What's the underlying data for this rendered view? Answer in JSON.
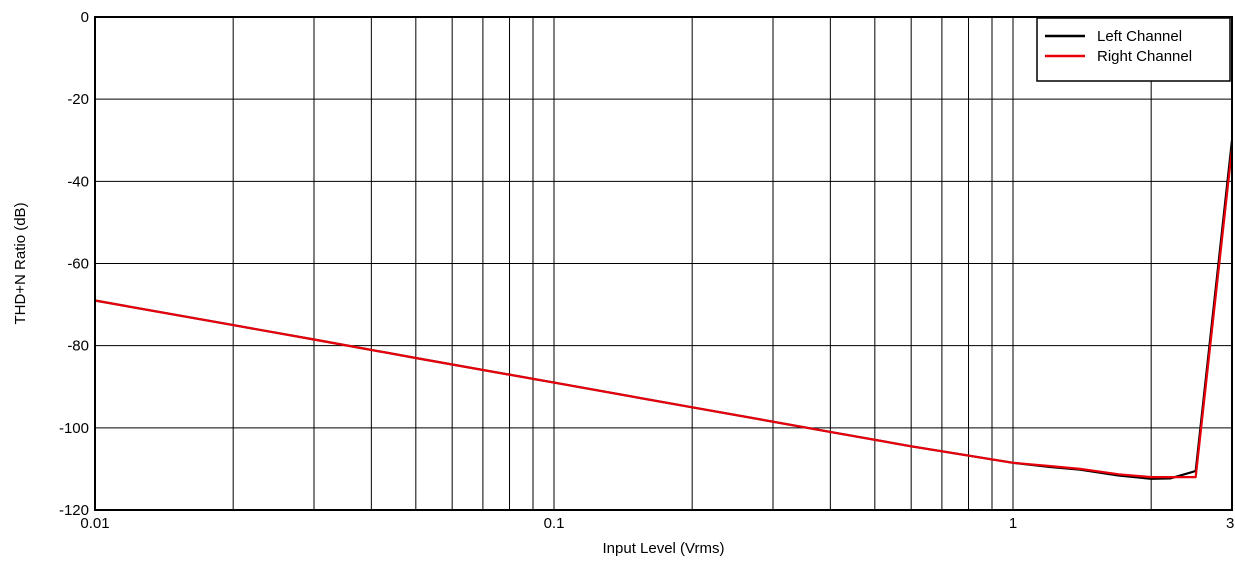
{
  "chart_data": {
    "type": "line",
    "xlabel": "Input Level (Vrms)",
    "ylabel": "THD+N Ratio (dB)",
    "x_scale": "log",
    "xlim": [
      0.01,
      3
    ],
    "ylim": [
      -120,
      0
    ],
    "x_tick_labels": [
      "0.01",
      "0.1",
      "1",
      "3"
    ],
    "x_tick_values": [
      0.01,
      0.1,
      1,
      3
    ],
    "y_ticks": [
      0,
      -20,
      -40,
      -60,
      -80,
      -100,
      -120
    ],
    "grid": true,
    "legend_position": "top-right",
    "series": [
      {
        "name": "Left Channel",
        "color": "#000000",
        "x": [
          0.01,
          0.02,
          0.03,
          0.05,
          0.1,
          0.2,
          0.4,
          0.6,
          1.0,
          1.2,
          1.4,
          1.7,
          2.0,
          2.2,
          2.5,
          3.0
        ],
        "y": [
          -69.0,
          -75.0,
          -78.5,
          -83.0,
          -89.0,
          -95.0,
          -101.0,
          -104.5,
          -108.5,
          -109.5,
          -110.2,
          -111.6,
          -112.4,
          -112.3,
          -110.5,
          -30.0
        ]
      },
      {
        "name": "Right Channel",
        "color": "#e8000b",
        "x": [
          0.01,
          0.02,
          0.03,
          0.05,
          0.1,
          0.2,
          0.4,
          0.6,
          1.0,
          1.2,
          1.4,
          1.7,
          2.0,
          2.2,
          2.5,
          3.0
        ],
        "y": [
          -69.0,
          -75.0,
          -78.5,
          -83.0,
          -89.0,
          -95.0,
          -101.0,
          -104.5,
          -108.5,
          -109.3,
          -110.0,
          -111.3,
          -112.0,
          -112.0,
          -112.0,
          -32.0
        ]
      }
    ]
  }
}
